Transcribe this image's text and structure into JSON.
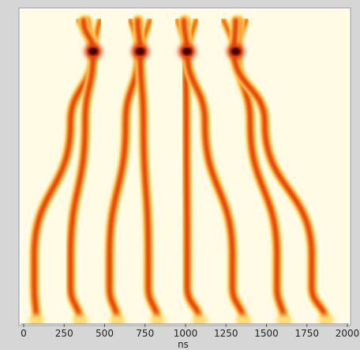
{
  "chart_data": {
    "type": "heatmap",
    "title": "",
    "xlabel": "ns",
    "ylabel": "",
    "xlim": [
      0,
      2000
    ],
    "x_ticks": [
      "0",
      "250",
      "500",
      "750",
      "1000",
      "1250",
      "1500",
      "1750",
      "2000"
    ],
    "y_ticks": [],
    "colormap": [
      "#fffbe6",
      "#ffe07a",
      "#ff9a1f",
      "#e03a0a",
      "#7a0a0a",
      "#3a0505"
    ],
    "grid": false,
    "series": [
      {
        "x": [
          390,
          430,
          290,
          65,
          65,
          80
        ],
        "y_frac": [
          0.02,
          0.12,
          0.35,
          0.78,
          0.88,
          1.0
        ]
      },
      {
        "x": [
          370,
          430,
          380,
          290,
          290,
          350
        ],
        "y_frac": [
          0.02,
          0.12,
          0.35,
          0.78,
          0.88,
          1.0
        ]
      },
      {
        "x": [
          710,
          710,
          630,
          530,
          530,
          580
        ],
        "y_frac": [
          0.02,
          0.12,
          0.35,
          0.78,
          0.88,
          1.0
        ]
      },
      {
        "x": [
          705,
          720,
          740,
          770,
          770,
          830
        ],
        "y_frac": [
          0.02,
          0.12,
          0.35,
          0.78,
          0.88,
          1.0
        ]
      },
      {
        "x": [
          1000,
          1000,
          1005,
          1010,
          1010,
          1090
        ],
        "y_frac": [
          0.02,
          0.12,
          0.35,
          0.78,
          0.88,
          1.0
        ]
      },
      {
        "x": [
          990,
          1010,
          1120,
          1290,
          1290,
          1360
        ],
        "y_frac": [
          0.02,
          0.12,
          0.35,
          0.78,
          0.88,
          1.0
        ]
      },
      {
        "x": [
          1330,
          1320,
          1400,
          1565,
          1565,
          1610
        ],
        "y_frac": [
          0.02,
          0.12,
          0.35,
          0.78,
          0.88,
          1.0
        ]
      },
      {
        "x": [
          1310,
          1300,
          1490,
          1780,
          1780,
          1870
        ],
        "y_frac": [
          0.02,
          0.12,
          0.35,
          0.78,
          0.88,
          1.0
        ]
      }
    ],
    "forks": [
      {
        "x": [
          340,
          390,
          430,
          470
        ],
        "y_frac": 0.02
      },
      {
        "x": [
          660,
          705,
          730,
          780
        ],
        "y_frac": 0.02
      },
      {
        "x": [
          950,
          1000,
          1025,
          1065
        ],
        "y_frac": 0.02
      },
      {
        "x": [
          1235,
          1290,
          1330,
          1375
        ],
        "y_frac": 0.02
      }
    ],
    "hotspots": [
      {
        "x": 430,
        "y_frac": 0.12
      },
      {
        "x": 720,
        "y_frac": 0.12
      },
      {
        "x": 1010,
        "y_frac": 0.12
      },
      {
        "x": 1310,
        "y_frac": 0.12
      }
    ]
  }
}
